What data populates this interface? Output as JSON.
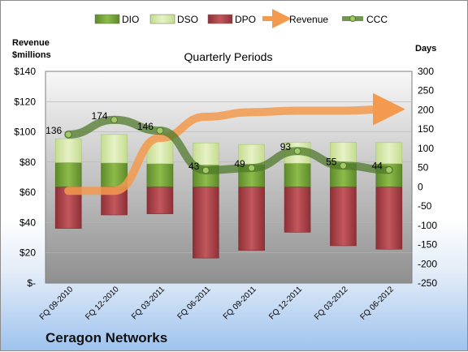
{
  "chart_data": {
    "type": "bar",
    "title": "Quarterly Periods",
    "company": "Ceragon Networks",
    "left_axis_title": [
      "Revenue",
      "$millions"
    ],
    "right_axis_title": "Days",
    "categories": [
      "FQ 09-2010",
      "FQ 12-2010",
      "FQ 03-2011",
      "FQ 06-2011",
      "FQ 09-2011",
      "FQ 12-2011",
      "FQ 03-2012",
      "FQ 06-2012"
    ],
    "left_ticks": [
      "$140",
      "$120",
      "$100",
      "$80",
      "$60",
      "$40",
      "$20",
      "$-"
    ],
    "right_ticks": [
      "300",
      "250",
      "200",
      "150",
      "100",
      "50",
      "0",
      "-50",
      "-100",
      "-150",
      "-200",
      "-250"
    ],
    "right_ylim": [
      -250,
      300
    ],
    "left_ylim": [
      0,
      140
    ],
    "legend": [
      "DIO",
      "DSO",
      "DPO",
      "Revenue",
      "CCC"
    ],
    "series": [
      {
        "name": "DIO",
        "axis": "right",
        "values": [
          63,
          62,
          60,
          57,
          58,
          61,
          61,
          60
        ]
      },
      {
        "name": "DSO",
        "axis": "right",
        "values": [
          62,
          74,
          61,
          57,
          52,
          55,
          55,
          55
        ]
      },
      {
        "name": "DPO",
        "axis": "right",
        "values": [
          -108,
          -73,
          -70,
          -185,
          -165,
          -118,
          -153,
          -162
        ]
      },
      {
        "name": "Revenue",
        "axis": "left",
        "values": [
          61,
          61,
          96,
          110,
          113,
          114,
          114,
          115
        ]
      },
      {
        "name": "CCC",
        "axis": "right",
        "values": [
          136,
          174,
          146,
          43,
          49,
          93,
          55,
          44
        ],
        "labels": [
          "136",
          "174",
          "146",
          "43",
          "49",
          "93",
          "55",
          "44"
        ]
      }
    ],
    "colors": {
      "DIO": "#76a03a",
      "DSO": "#d4e8a7",
      "DPO": "#b0464c",
      "Revenue": "#f39a4e",
      "CCC": "#4f7a2b"
    }
  }
}
